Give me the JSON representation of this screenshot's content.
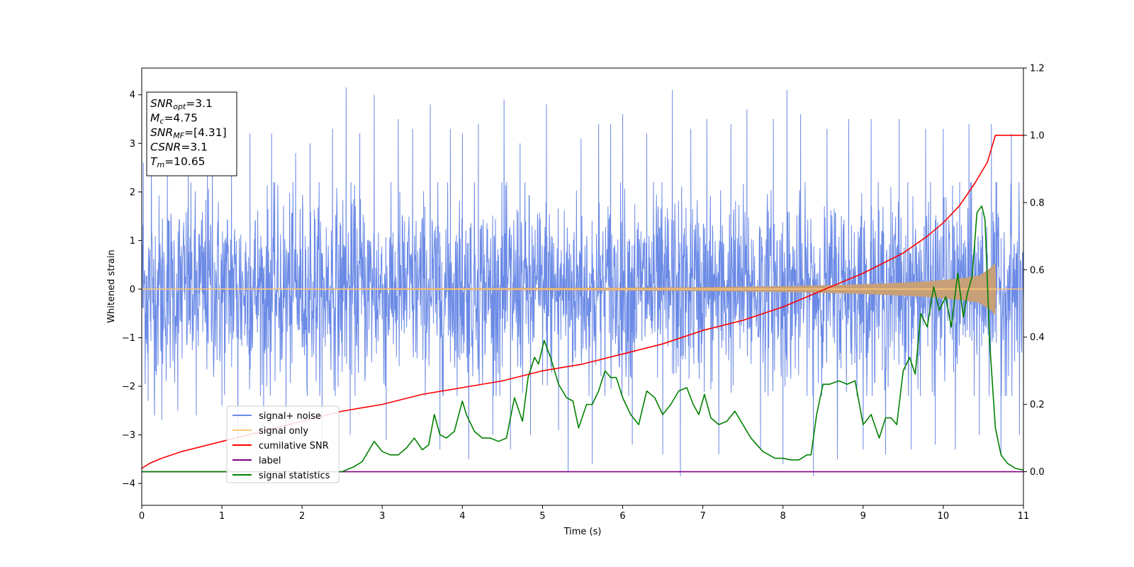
{
  "chart_data": {
    "type": "line",
    "xlabel": "Time (s)",
    "ylabel": "Whitened strain",
    "xlim": [
      0,
      11
    ],
    "ylim_left": [
      -4.45,
      4.55
    ],
    "ylim_right": [
      -0.1,
      1.2
    ],
    "x_ticks": [
      "0",
      "1",
      "2",
      "3",
      "4",
      "5",
      "6",
      "7",
      "8",
      "9",
      "10",
      "11"
    ],
    "y_left_ticks": [
      "4",
      "3",
      "2",
      "1",
      "0",
      "−1",
      "−2",
      "−3",
      "−4"
    ],
    "y_right_ticks": [
      "1.2",
      "1.0",
      "0.8",
      "0.6",
      "0.4",
      "0.2",
      "0.0"
    ],
    "info_box": [
      {
        "base": "SNR",
        "sub": "opt",
        "value": "=3.1"
      },
      {
        "base": "M",
        "sub": "c",
        "value": "=4.75"
      },
      {
        "base": "SNR",
        "sub": "MF",
        "value": "=[4.31]"
      },
      {
        "base": "CSNR",
        "sub": "",
        "value": "=3.1"
      },
      {
        "base": "T",
        "sub": "m",
        "value": "=10.65"
      }
    ],
    "legend_placement": "lower-left",
    "legend": [
      {
        "name": "signal+ noise",
        "color": "#6b8ae6"
      },
      {
        "name": "signal only",
        "color": "#ffc878"
      },
      {
        "name": "cumilative SNR",
        "color": "#ff0000"
      },
      {
        "name": "label",
        "color": "#800080"
      },
      {
        "name": "signal statistics",
        "color": "#008000"
      }
    ],
    "series": [
      {
        "name": "signal+ noise",
        "axis": "left",
        "color": "#6b8ae6",
        "description_kind": "white noise envelope",
        "x_range": [
          0,
          11
        ],
        "typical_abs_max": 2.2,
        "peak_samples": [
          [
            0.02,
            2.6
          ],
          [
            0.08,
            -2.3
          ],
          [
            0.12,
            2.7
          ],
          [
            0.16,
            -2.6
          ],
          [
            0.25,
            -2.7
          ],
          [
            0.32,
            2.9
          ],
          [
            0.45,
            -2.5
          ],
          [
            0.58,
            3.1
          ],
          [
            0.68,
            -2.6
          ],
          [
            0.82,
            3.0
          ],
          [
            0.88,
            2.9
          ],
          [
            1.0,
            -2.4
          ],
          [
            1.12,
            3.0
          ],
          [
            1.2,
            -3.3
          ],
          [
            1.35,
            3.2
          ],
          [
            1.52,
            -2.9
          ],
          [
            1.62,
            3.2
          ],
          [
            1.8,
            -3.0
          ],
          [
            1.92,
            2.8
          ],
          [
            2.1,
            3.0
          ],
          [
            2.25,
            -3.1
          ],
          [
            2.38,
            3.3
          ],
          [
            2.55,
            4.15
          ],
          [
            2.6,
            -3.0
          ],
          [
            2.72,
            3.2
          ],
          [
            2.9,
            4.0
          ],
          [
            3.05,
            -3.1
          ],
          [
            3.2,
            3.5
          ],
          [
            3.38,
            3.3
          ],
          [
            3.6,
            3.8
          ],
          [
            3.72,
            -3.3
          ],
          [
            3.85,
            3.3
          ],
          [
            4.0,
            3.2
          ],
          [
            4.08,
            -3.5
          ],
          [
            4.2,
            3.4
          ],
          [
            4.38,
            -3.0
          ],
          [
            4.52,
            3.9
          ],
          [
            4.6,
            -3.3
          ],
          [
            4.72,
            3.0
          ],
          [
            4.85,
            -3.0
          ],
          [
            5.05,
            3.8
          ],
          [
            5.2,
            -2.9
          ],
          [
            5.32,
            -3.75
          ],
          [
            5.48,
            3.1
          ],
          [
            5.62,
            -3.6
          ],
          [
            5.7,
            3.4
          ],
          [
            5.85,
            3.4
          ],
          [
            6.0,
            3.6
          ],
          [
            6.12,
            -3.2
          ],
          [
            6.3,
            3.2
          ],
          [
            6.5,
            -3.4
          ],
          [
            6.62,
            4.1
          ],
          [
            6.72,
            -3.85
          ],
          [
            6.85,
            3.3
          ],
          [
            7.05,
            3.5
          ],
          [
            7.2,
            -3.4
          ],
          [
            7.35,
            3.4
          ],
          [
            7.55,
            3.7
          ],
          [
            7.72,
            -3.3
          ],
          [
            7.88,
            3.5
          ],
          [
            8.0,
            -3.6
          ],
          [
            8.05,
            4.1
          ],
          [
            8.22,
            3.6
          ],
          [
            8.38,
            -3.85
          ],
          [
            8.55,
            3.3
          ],
          [
            8.68,
            -3.5
          ],
          [
            8.82,
            3.5
          ],
          [
            9.0,
            -3.3
          ],
          [
            9.1,
            3.5
          ],
          [
            9.28,
            -3.4
          ],
          [
            9.45,
            3.5
          ],
          [
            9.6,
            -3.3
          ],
          [
            9.78,
            3.3
          ],
          [
            9.9,
            -3.2
          ],
          [
            10.0,
            3.3
          ],
          [
            10.15,
            -3.3
          ],
          [
            10.32,
            3.4
          ],
          [
            10.45,
            -3.0
          ],
          [
            10.6,
            3.4
          ],
          [
            10.72,
            -3.4
          ],
          [
            10.85,
            3.2
          ],
          [
            10.95,
            -3.0
          ]
        ]
      },
      {
        "name": "signal only",
        "axis": "left",
        "color": "#ffc878",
        "description_kind": "chirp envelope",
        "envelope": [
          [
            0,
            0.01
          ],
          [
            2,
            0.01
          ],
          [
            4,
            0.02
          ],
          [
            6,
            0.03
          ],
          [
            7,
            0.04
          ],
          [
            8,
            0.06
          ],
          [
            8.8,
            0.09
          ],
          [
            9.3,
            0.12
          ],
          [
            9.8,
            0.16
          ],
          [
            10.2,
            0.22
          ],
          [
            10.45,
            0.28
          ],
          [
            10.6,
            0.45
          ],
          [
            10.65,
            0.55
          ],
          [
            10.66,
            0.0
          ],
          [
            11,
            0.0
          ]
        ]
      },
      {
        "name": "cumilative SNR",
        "axis": "right",
        "color": "#ff0000",
        "x": [
          0,
          0.1,
          0.25,
          0.5,
          1,
          1.5,
          2,
          2.5,
          3,
          3.5,
          4,
          4.5,
          5,
          5.5,
          6,
          6.5,
          7,
          7.5,
          8,
          8.5,
          9,
          9.5,
          9.8,
          10,
          10.2,
          10.4,
          10.55,
          10.65,
          11
        ],
        "values": [
          0.01,
          0.025,
          0.04,
          0.06,
          0.09,
          0.12,
          0.15,
          0.18,
          0.2,
          0.23,
          0.25,
          0.27,
          0.3,
          0.32,
          0.35,
          0.38,
          0.42,
          0.45,
          0.49,
          0.54,
          0.59,
          0.65,
          0.7,
          0.74,
          0.79,
          0.86,
          0.92,
          1.0,
          1.0
        ]
      },
      {
        "name": "label",
        "axis": "right",
        "color": "#800080",
        "x": [
          0,
          11
        ],
        "values": [
          0.0,
          0.0
        ]
      },
      {
        "name": "signal statistics",
        "axis": "right",
        "color": "#008000",
        "x": [
          0,
          0.5,
          1,
          1.5,
          2,
          2.5,
          2.65,
          2.75,
          2.9,
          3.0,
          3.1,
          3.2,
          3.3,
          3.4,
          3.5,
          3.58,
          3.65,
          3.72,
          3.8,
          3.9,
          4.0,
          4.05,
          4.15,
          4.25,
          4.35,
          4.45,
          4.55,
          4.65,
          4.75,
          4.82,
          4.9,
          4.95,
          5.02,
          5.1,
          5.2,
          5.3,
          5.38,
          5.45,
          5.55,
          5.62,
          5.7,
          5.78,
          5.85,
          5.92,
          6.0,
          6.1,
          6.2,
          6.3,
          6.4,
          6.5,
          6.6,
          6.7,
          6.8,
          6.88,
          6.95,
          7.02,
          7.1,
          7.2,
          7.3,
          7.4,
          7.5,
          7.6,
          7.75,
          7.9,
          8.0,
          8.1,
          8.2,
          8.3,
          8.35,
          8.42,
          8.5,
          8.58,
          8.7,
          8.8,
          8.9,
          9.0,
          9.1,
          9.2,
          9.28,
          9.35,
          9.42,
          9.5,
          9.58,
          9.65,
          9.72,
          9.8,
          9.88,
          9.95,
          10.03,
          10.1,
          10.18,
          10.25,
          10.3,
          10.36,
          10.42,
          10.48,
          10.52,
          10.58,
          10.65,
          10.72,
          10.8,
          10.9,
          11
        ],
        "values": [
          0.0,
          0.0,
          0.0,
          0.0,
          0.0,
          0.0,
          0.015,
          0.03,
          0.09,
          0.06,
          0.05,
          0.05,
          0.07,
          0.1,
          0.065,
          0.08,
          0.17,
          0.11,
          0.1,
          0.12,
          0.21,
          0.17,
          0.12,
          0.1,
          0.1,
          0.09,
          0.1,
          0.22,
          0.15,
          0.28,
          0.34,
          0.32,
          0.39,
          0.34,
          0.26,
          0.22,
          0.21,
          0.13,
          0.2,
          0.2,
          0.24,
          0.3,
          0.28,
          0.28,
          0.22,
          0.17,
          0.14,
          0.24,
          0.22,
          0.17,
          0.2,
          0.24,
          0.25,
          0.2,
          0.17,
          0.23,
          0.16,
          0.14,
          0.15,
          0.18,
          0.14,
          0.1,
          0.06,
          0.04,
          0.04,
          0.035,
          0.035,
          0.05,
          0.05,
          0.17,
          0.26,
          0.26,
          0.27,
          0.26,
          0.27,
          0.14,
          0.17,
          0.1,
          0.16,
          0.16,
          0.14,
          0.3,
          0.34,
          0.29,
          0.47,
          0.43,
          0.55,
          0.48,
          0.52,
          0.43,
          0.59,
          0.46,
          0.53,
          0.58,
          0.77,
          0.79,
          0.75,
          0.38,
          0.13,
          0.05,
          0.025,
          0.01,
          0.005
        ]
      }
    ]
  }
}
